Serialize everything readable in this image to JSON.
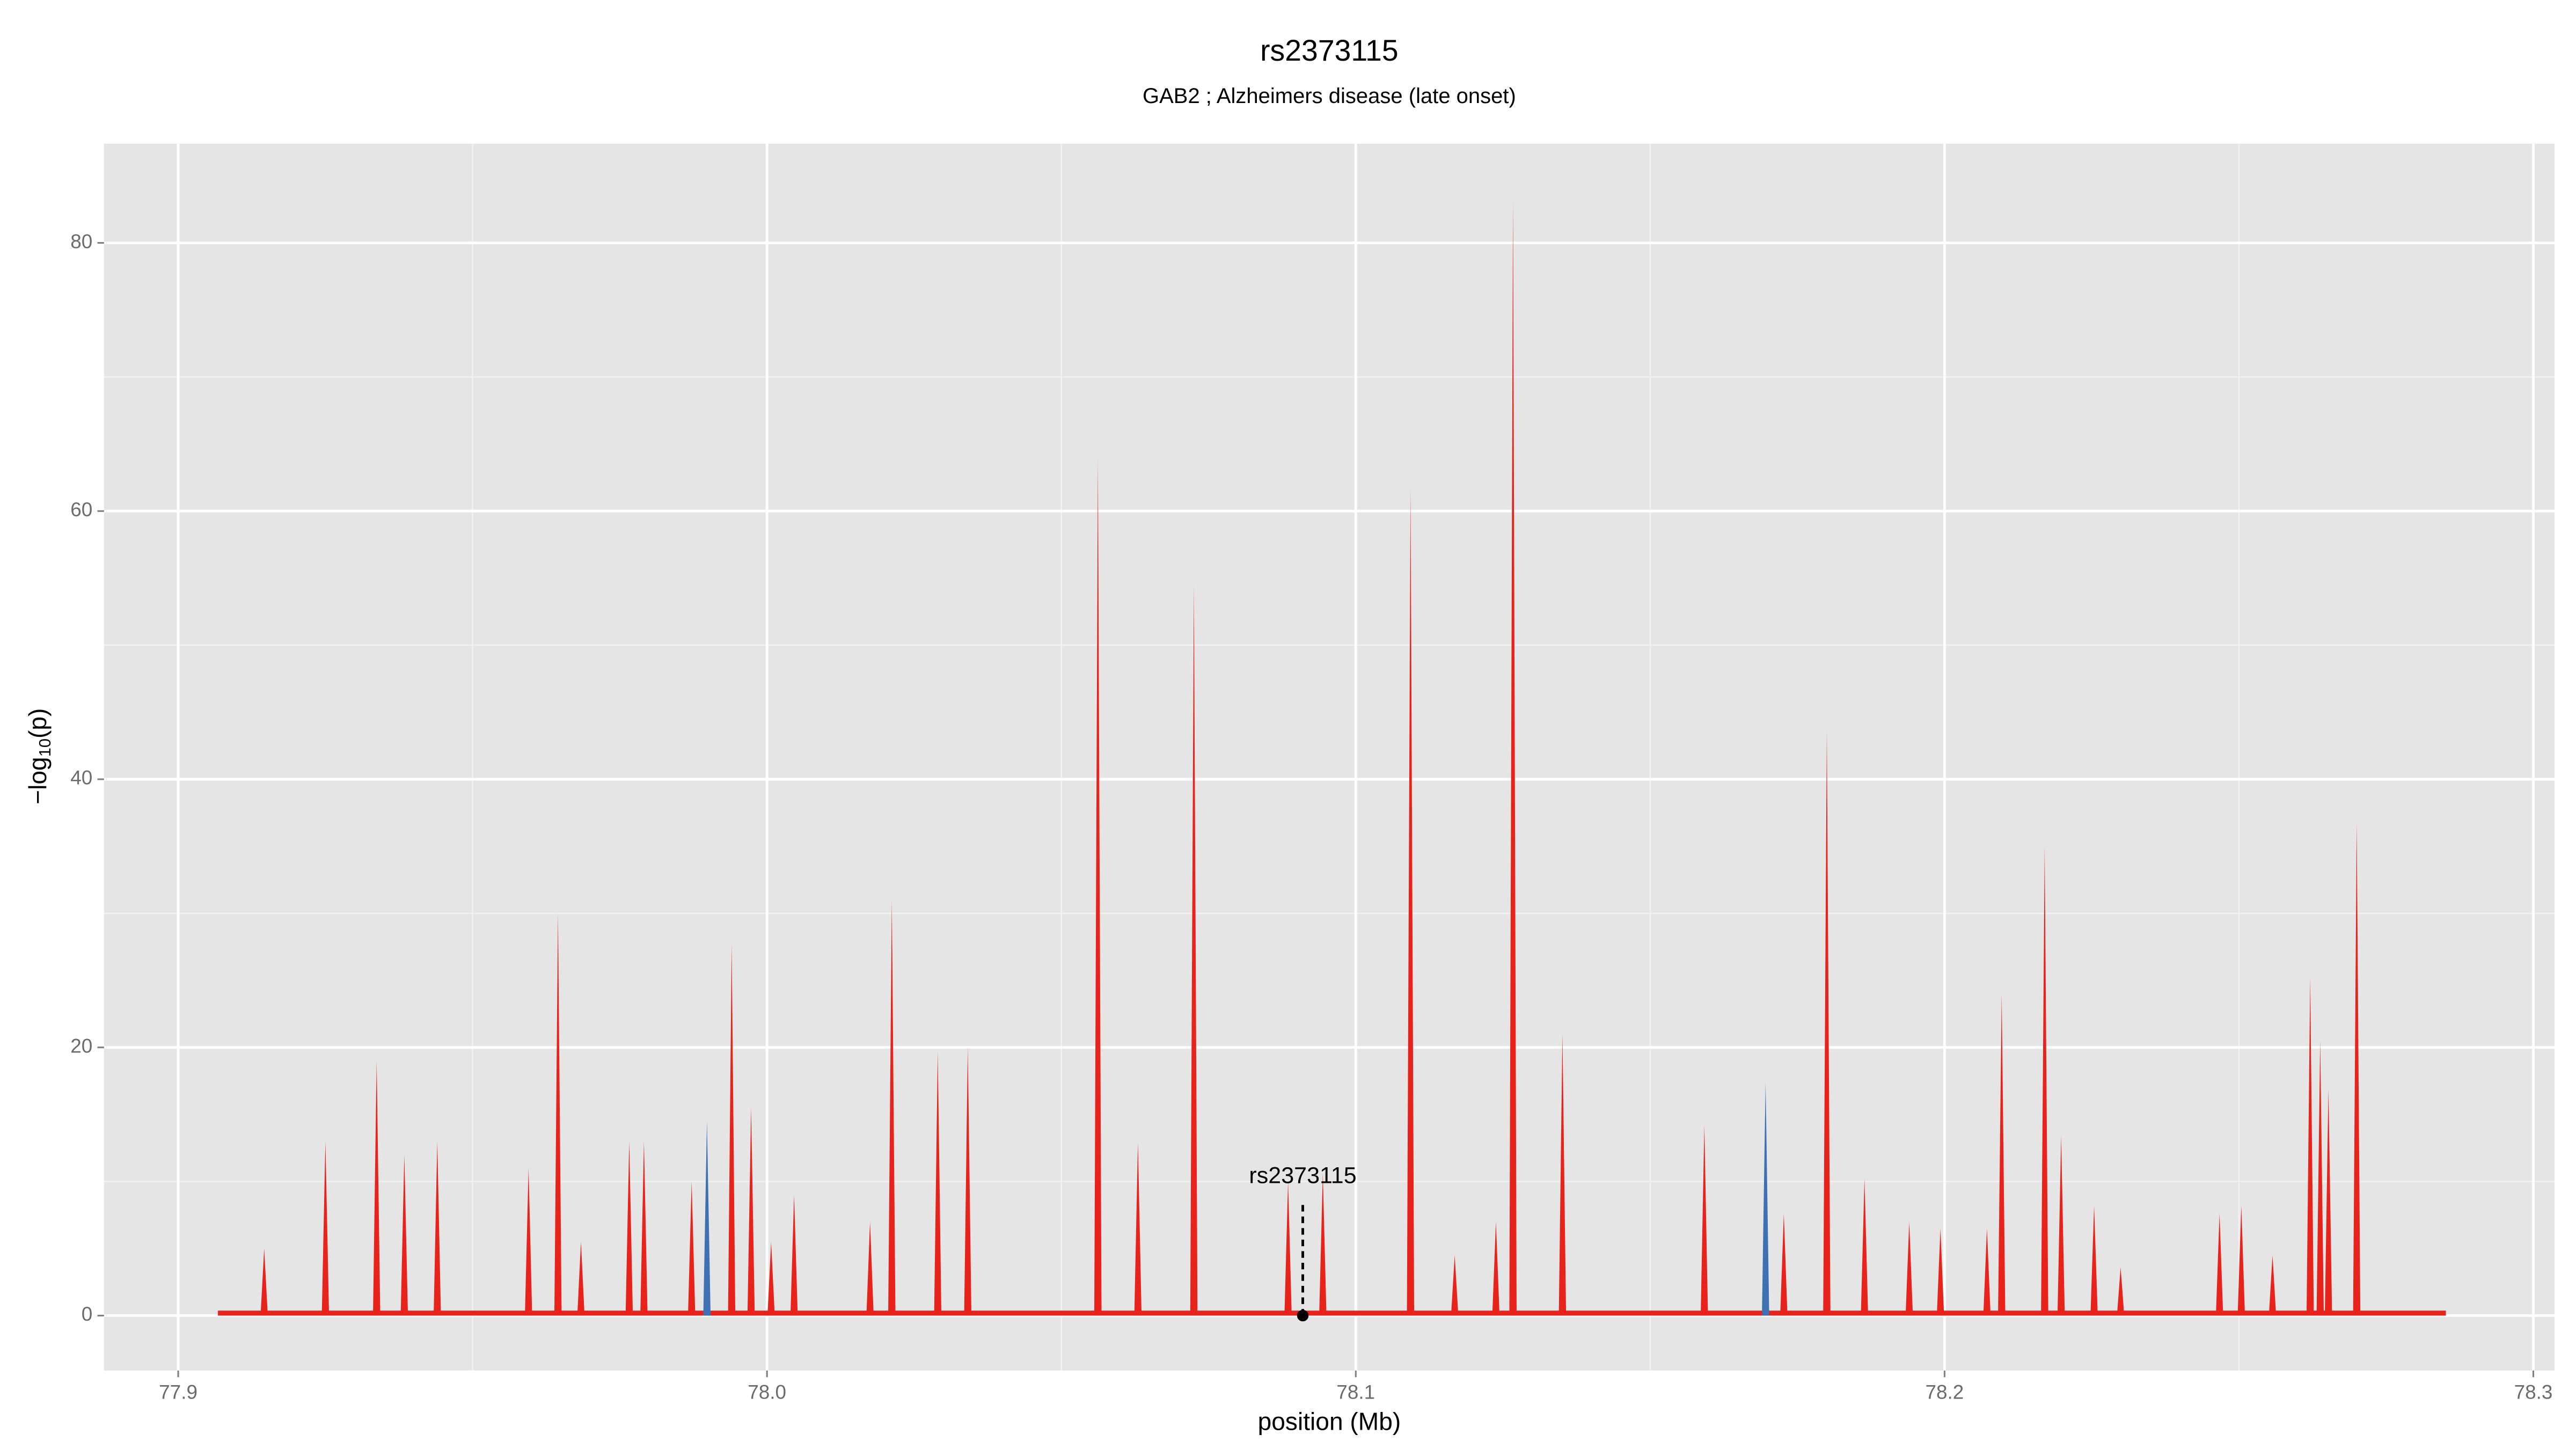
{
  "chart_data": {
    "type": "spike",
    "title": "rs2373115",
    "subtitle": "GAB2 ; Alzheimers disease (late onset)",
    "x_label": "position (Mb)",
    "y_label": {
      "prefix": "−log",
      "sub": "10",
      "suffix": "(p)"
    },
    "xlim": [
      77.8874,
      78.3036
    ],
    "ylim": [
      -4.1,
      87.4
    ],
    "xticks": [
      77.9,
      {
        "value": 78.0,
        "label": "78.0"
      },
      78.1,
      78.2,
      78.3
    ],
    "yticks": [
      0,
      20,
      40,
      60,
      80
    ],
    "grid": true,
    "minor_grid": true,
    "series": [
      {
        "color": "#e8231c",
        "x": [
          77.9146,
          77.925,
          77.9337,
          77.9384,
          77.944,
          77.9595,
          77.9645,
          77.9684,
          77.9766,
          77.9791,
          77.9872,
          77.994,
          77.9973,
          78.0007,
          78.0046,
          78.0175,
          78.0212,
          78.029,
          78.0341,
          78.0562,
          78.063,
          78.0725,
          78.0885,
          78.0944,
          78.1093,
          78.1168,
          78.1238,
          78.1267,
          78.1351,
          78.1592,
          78.1727,
          78.18,
          78.1864,
          78.194,
          78.1993,
          78.2072,
          78.2097,
          78.217,
          78.2198,
          78.2254,
          78.2299,
          78.2467,
          78.2504,
          78.2557,
          78.2621,
          78.2638,
          78.2652,
          78.27
        ],
        "values": [
          5,
          13,
          19,
          12,
          13,
          11,
          30,
          5.5,
          13,
          13,
          10,
          27.7,
          15.5,
          5.5,
          9,
          7,
          31,
          19.7,
          20,
          63.9,
          12.9,
          54.5,
          10,
          10.6,
          61.7,
          4.5,
          7,
          83.3,
          21,
          14.2,
          7.6,
          43.6,
          10.2,
          7,
          6.5,
          6.5,
          24,
          35,
          13.4,
          8.2,
          3.6,
          7.6,
          8.2,
          4.5,
          25.2,
          20.5,
          16.9,
          36.8
        ]
      },
      {
        "color": "#3e70b4",
        "x": [
          77.9898,
          78.1696
        ],
        "values": [
          14.5,
          17.4
        ]
      }
    ],
    "annotation": {
      "text": "rs2373115",
      "x": 78.091,
      "y": 0
    }
  }
}
